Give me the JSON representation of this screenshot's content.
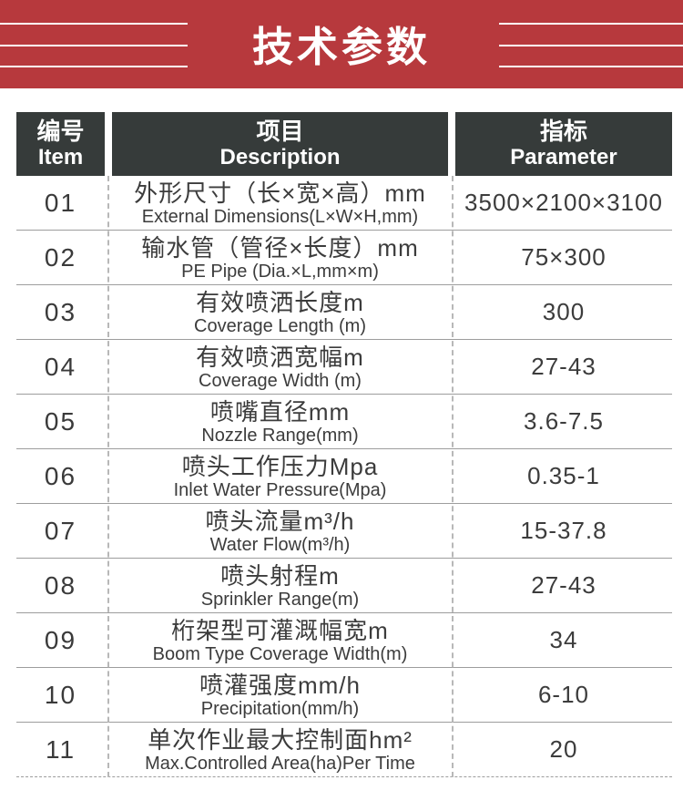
{
  "banner": {
    "title": "技术参数",
    "accent_color": "#b7393d",
    "header_color": "#363b3a"
  },
  "table": {
    "header": {
      "item_zh": "编号",
      "item_en": "Item",
      "desc_zh": "项目",
      "desc_en": "Description",
      "param_zh": "指标",
      "param_en": "Parameter"
    },
    "rows": [
      {
        "no": "01",
        "zh": "外形尺寸（长×宽×高）mm",
        "en": "External Dimensions(L×W×H,mm)",
        "value": "3500×2100×3100"
      },
      {
        "no": "02",
        "zh": "输水管（管径×长度）mm",
        "en": "PE Pipe (Dia.×L,mm×m)",
        "value": "75×300"
      },
      {
        "no": "03",
        "zh": "有效喷洒长度m",
        "en": "Coverage Length (m)",
        "value": "300"
      },
      {
        "no": "04",
        "zh": "有效喷洒宽幅m",
        "en": "Coverage Width (m)",
        "value": "27-43"
      },
      {
        "no": "05",
        "zh": "喷嘴直径mm",
        "en": "Nozzle Range(mm)",
        "value": "3.6-7.5"
      },
      {
        "no": "06",
        "zh": "喷头工作压力Mpa",
        "en": "Inlet Water Pressure(Mpa)",
        "value": "0.35-1"
      },
      {
        "no": "07",
        "zh": "喷头流量m³/h",
        "en": "Water Flow(m³/h)",
        "value": "15-37.8"
      },
      {
        "no": "08",
        "zh": "喷头射程m",
        "en": "Sprinkler Range(m)",
        "value": "27-43"
      },
      {
        "no": "09",
        "zh": "桁架型可灌溉幅宽m",
        "en": "Boom Type Coverage Width(m)",
        "value": "34"
      },
      {
        "no": "10",
        "zh": "喷灌强度mm/h",
        "en": "Precipitation(mm/h)",
        "value": "6-10"
      },
      {
        "no": "11",
        "zh": "单次作业最大控制面hm²",
        "en": "Max.Controlled Area(ha)Per Time",
        "value": "20"
      }
    ]
  }
}
